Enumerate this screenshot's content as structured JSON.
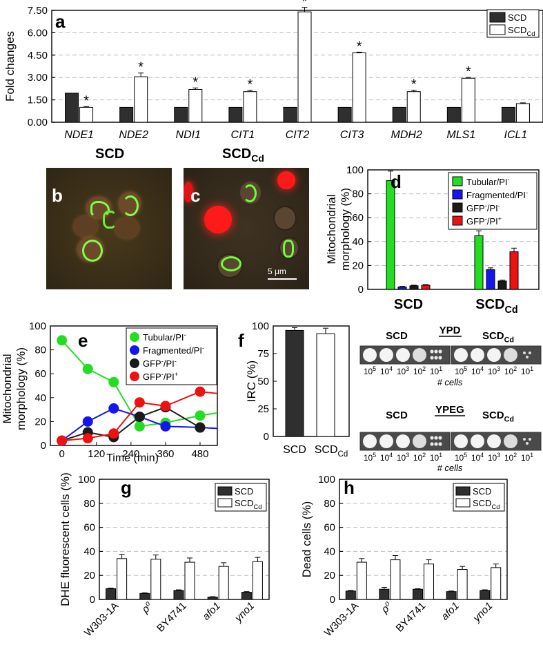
{
  "colors": {
    "scd": "#2f2f2f",
    "scd_cd": "#ffffff",
    "tubular": "#22dd22",
    "fragmented": "#1515ee",
    "gfp_neg_pi_neg": "#1a1a1a",
    "gfp_neg_pi_pos": "#ee1111",
    "gridline": "#bbbbbb"
  },
  "panels": {
    "a": "a",
    "b": "b",
    "c": "c",
    "d": "d",
    "e": "e",
    "f": "f",
    "g": "g",
    "h": "h"
  },
  "micro": {
    "b_title": "SCD",
    "c_title": "SCD",
    "c_title_sub": "Cd",
    "scale_bar": "5 μm"
  },
  "spots": {
    "ypd_label": "YPD",
    "ypeg_label": "YPEG",
    "scd_label": "SCD",
    "scdcd_label": "SCD",
    "scdcd_sub": "Cd",
    "dilutions": [
      "10^5",
      "10^4",
      "10^3",
      "10^2",
      "10^1"
    ],
    "cells_label": "# cells"
  },
  "chart_data": [
    {
      "id": "a",
      "type": "bar",
      "ylabel": "Fold changes",
      "ylim": [
        0,
        7.5
      ],
      "yticks": [
        "0.00",
        "1.50",
        "3.00",
        "4.50",
        "6.00",
        "7.50"
      ],
      "categories": [
        "NDE1",
        "NDE2",
        "NDI1",
        "CIT1",
        "CIT2",
        "CIT3",
        "MDH2",
        "MLS1",
        "ICL1"
      ],
      "series": [
        {
          "name": "SCD",
          "values": [
            1.95,
            1.0,
            1.0,
            1.0,
            1.0,
            1.0,
            1.0,
            1.0,
            1.0
          ],
          "errors": [
            0,
            0,
            0,
            0,
            0,
            0,
            0,
            0,
            0
          ]
        },
        {
          "name": "SCD",
          "sub": "Cd",
          "values": [
            1.0,
            3.05,
            2.2,
            2.05,
            7.4,
            4.65,
            2.05,
            2.95,
            1.25
          ],
          "errors": [
            0.05,
            0.25,
            0.1,
            0.1,
            0.3,
            0.05,
            0.1,
            0.05,
            0.05
          ]
        }
      ],
      "significant": [
        true,
        true,
        true,
        true,
        true,
        true,
        true,
        true,
        false
      ],
      "legend": "top-right"
    },
    {
      "id": "d",
      "type": "bar",
      "ylabel": "Mitochondrial morphology (%)",
      "ylim": [
        0,
        100
      ],
      "yticks": [
        "0",
        "20",
        "40",
        "60",
        "80",
        "100"
      ],
      "categories": [
        "SCD",
        "SCD"
      ],
      "category_subs": [
        "",
        "Cd"
      ],
      "series": [
        {
          "name": "Tubular/PI",
          "sup": "-",
          "values": [
            91,
            45
          ],
          "errors": [
            8,
            4
          ]
        },
        {
          "name": "Fragmented/PI",
          "sup": "-",
          "values": [
            2,
            16.5
          ],
          "errors": [
            0.5,
            1.5
          ]
        },
        {
          "name": "GFP/PI",
          "sup": "-",
          "pre_sup": "-",
          "values": [
            3,
            7
          ],
          "errors": [
            0.5,
            0.8
          ]
        },
        {
          "name": "GFP/PI",
          "sup": "+",
          "pre_sup": "-",
          "values": [
            3.5,
            31.5
          ],
          "errors": [
            0.5,
            3
          ]
        }
      ],
      "legend": "top-right"
    },
    {
      "id": "e",
      "type": "line",
      "xlabel": "Time (min)",
      "ylabel": "Mitochondrial morphology (%)",
      "xlim": [
        -40,
        540
      ],
      "ylim": [
        0,
        100
      ],
      "xticks": [
        "0",
        "120",
        "240",
        "360",
        "480"
      ],
      "yticks": [
        "0",
        "20",
        "40",
        "60",
        "80",
        "100"
      ],
      "series": [
        {
          "name": "Tubular/PI",
          "sup": "-",
          "x": [
            0,
            90,
            180,
            270,
            360,
            480,
            560
          ],
          "y": [
            88,
            64,
            53,
            16,
            19,
            25,
            28
          ]
        },
        {
          "name": "Fragmented/PI",
          "sup": "-",
          "x": [
            0,
            90,
            180,
            270,
            360,
            480,
            560
          ],
          "y": [
            4,
            20,
            31,
            24,
            16,
            15,
            14
          ]
        },
        {
          "name": "GFP/PI",
          "sup": "-",
          "pre_sup": "-",
          "x": [
            0,
            90,
            180,
            270,
            360,
            480
          ],
          "y": [
            4,
            11,
            7,
            24,
            32,
            15
          ]
        },
        {
          "name": "GFP/PI",
          "sup": "+",
          "pre_sup": "-",
          "x": [
            0,
            90,
            180,
            270,
            360,
            480,
            560
          ],
          "y": [
            4,
            6,
            10,
            36,
            33,
            45,
            43
          ]
        }
      ],
      "legend": "top-right"
    },
    {
      "id": "f",
      "type": "bar",
      "ylabel": "IRC (%)",
      "ylim": [
        0,
        100
      ],
      "yticks": [
        "0",
        "25",
        "50",
        "75",
        "100"
      ],
      "categories": [
        "SCD",
        "SCD"
      ],
      "category_subs": [
        "",
        "Cd"
      ],
      "values": [
        96,
        93
      ],
      "errors": [
        2.5,
        5
      ]
    },
    {
      "id": "g",
      "type": "bar",
      "ylabel": "DHE fluorescent cells (%)",
      "ylim": [
        0,
        100
      ],
      "yticks": [
        "0",
        "20",
        "40",
        "60",
        "80",
        "100"
      ],
      "categories": [
        "W303-1A",
        "ρ⁰",
        "BY4741",
        "afo1",
        "yno1"
      ],
      "series": [
        {
          "name": "SCD",
          "values": [
            9,
            5,
            7.5,
            2,
            6
          ],
          "errors": [
            0.5,
            0.5,
            0.5,
            0.3,
            0.5
          ]
        },
        {
          "name": "SCD",
          "sub": "Cd",
          "values": [
            34,
            33.5,
            31,
            27.5,
            31.5
          ],
          "errors": [
            3.5,
            3.5,
            3.5,
            3,
            3.5
          ]
        }
      ],
      "legend": "top-right"
    },
    {
      "id": "h",
      "type": "bar",
      "ylabel": "Dead cells (%)",
      "ylim": [
        0,
        100
      ],
      "yticks": [
        "0",
        "20",
        "40",
        "60",
        "80",
        "100"
      ],
      "categories": [
        "W303-1A",
        "ρ⁰",
        "BY4741",
        "afo1",
        "yno1"
      ],
      "series": [
        {
          "name": "SCD",
          "values": [
            7,
            8.5,
            8.5,
            6.5,
            7.5
          ],
          "errors": [
            0.5,
            1.5,
            0.5,
            0.5,
            0.5
          ]
        },
        {
          "name": "SCD",
          "sub": "Cd",
          "values": [
            31,
            33,
            29.5,
            25,
            26.5
          ],
          "errors": [
            3,
            3.5,
            3.5,
            2.5,
            3
          ]
        }
      ],
      "legend": "top-right"
    }
  ]
}
